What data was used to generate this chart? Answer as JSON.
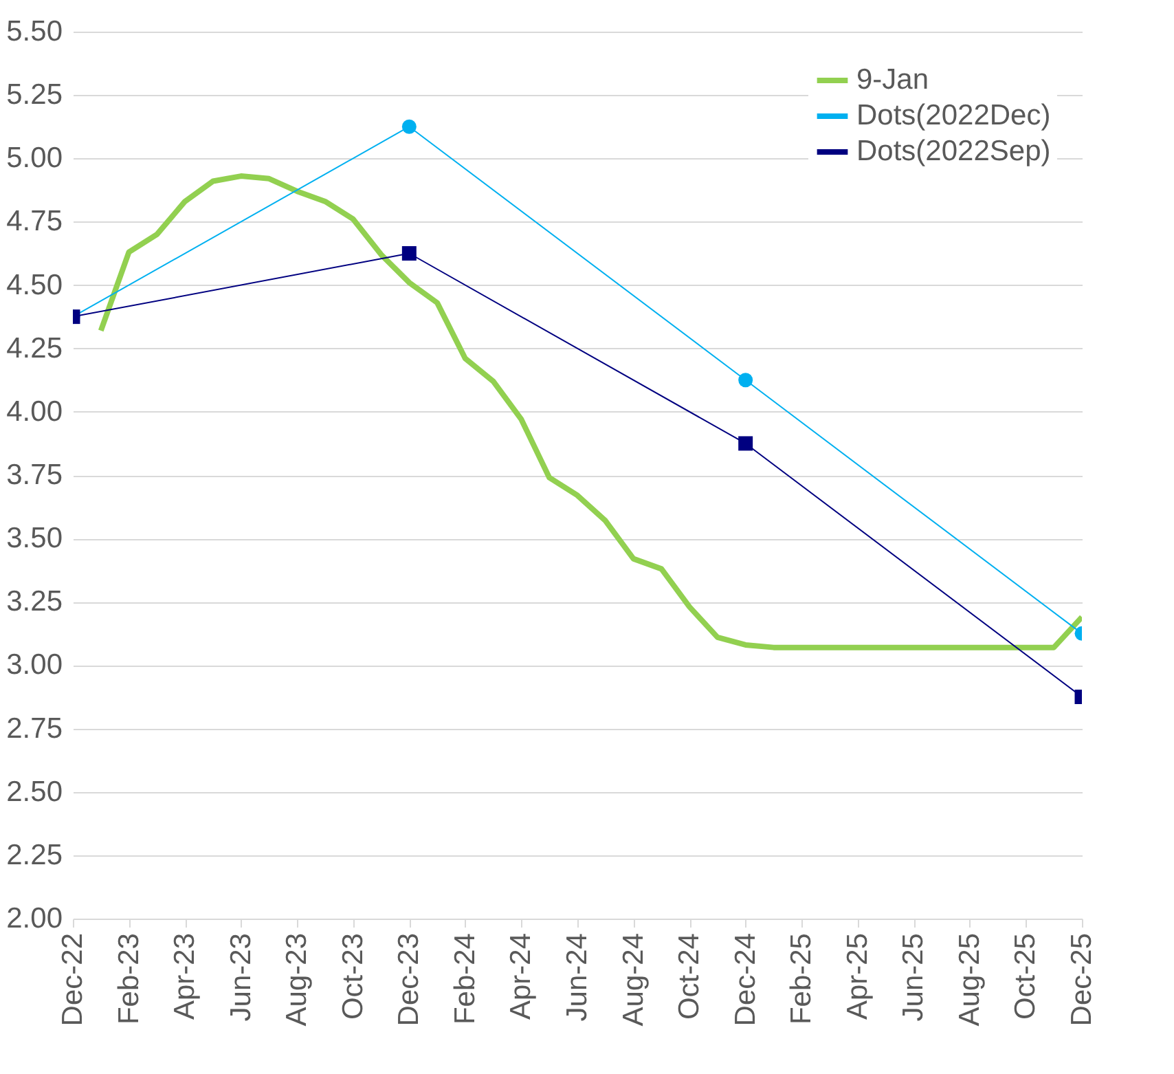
{
  "chart_data": {
    "type": "line",
    "categories": [
      "Dec-22",
      null,
      "Feb-23",
      null,
      "Apr-23",
      null,
      "Jun-23",
      null,
      "Aug-23",
      null,
      "Oct-23",
      null,
      "Dec-23",
      null,
      "Feb-24",
      null,
      "Apr-24",
      null,
      "Jun-24",
      null,
      "Aug-24",
      null,
      "Oct-24",
      null,
      "Dec-24",
      null,
      "Feb-25",
      null,
      "Apr-25",
      null,
      "Jun-25",
      null,
      "Aug-25",
      null,
      "Oct-25",
      null,
      "Dec-25"
    ],
    "series": [
      {
        "name": "9-Jan",
        "color": "#92d050",
        "marker": "none",
        "values": [
          null,
          4.32,
          4.63,
          4.7,
          4.83,
          4.91,
          4.93,
          4.92,
          4.87,
          4.83,
          4.76,
          4.62,
          4.51,
          4.43,
          4.21,
          4.12,
          3.97,
          3.74,
          3.67,
          3.57,
          3.42,
          3.38,
          3.23,
          3.11,
          3.08,
          3.07,
          3.07,
          3.07,
          3.07,
          3.07,
          3.07,
          3.07,
          3.07,
          3.07,
          3.07,
          3.07,
          3.19
        ]
      },
      {
        "name": "Dots(2022Dec)",
        "color": "#00b0f0",
        "marker": "circle",
        "values": [
          4.375,
          null,
          null,
          null,
          null,
          null,
          null,
          null,
          null,
          null,
          null,
          null,
          5.125,
          null,
          null,
          null,
          null,
          null,
          null,
          null,
          null,
          null,
          null,
          null,
          4.125,
          null,
          null,
          null,
          null,
          null,
          null,
          null,
          null,
          null,
          null,
          null,
          3.125
        ]
      },
      {
        "name": "Dots(2022Sep)",
        "color": "#000080",
        "marker": "square",
        "values": [
          4.375,
          null,
          null,
          null,
          null,
          null,
          null,
          null,
          null,
          null,
          null,
          null,
          4.625,
          null,
          null,
          null,
          null,
          null,
          null,
          null,
          null,
          null,
          null,
          null,
          3.875,
          null,
          null,
          null,
          null,
          null,
          null,
          null,
          null,
          null,
          null,
          null,
          2.875
        ]
      }
    ],
    "ylim": [
      2.0,
      5.5
    ],
    "yticks": [
      {
        "value": 2,
        "label": "2.00"
      },
      {
        "value": 2.25,
        "label": "2.25"
      },
      {
        "value": 2.5,
        "label": "2.50"
      },
      {
        "value": 2.75,
        "label": "2.75"
      },
      {
        "value": 3,
        "label": "3.00"
      },
      {
        "value": 3.25,
        "label": "3.25"
      },
      {
        "value": 3.5,
        "label": "3.50"
      },
      {
        "value": 3.75,
        "label": "3.75"
      },
      {
        "value": 4,
        "label": "4.00"
      },
      {
        "value": 4.25,
        "label": "4.25"
      },
      {
        "value": 4.5,
        "label": "4.50"
      },
      {
        "value": 4.75,
        "label": "4.75"
      },
      {
        "value": 5,
        "label": "5.00"
      },
      {
        "value": 5.25,
        "label": "5.25"
      },
      {
        "value": 5.5,
        "label": "5.50"
      }
    ],
    "grid": "y",
    "legend": "top right"
  }
}
